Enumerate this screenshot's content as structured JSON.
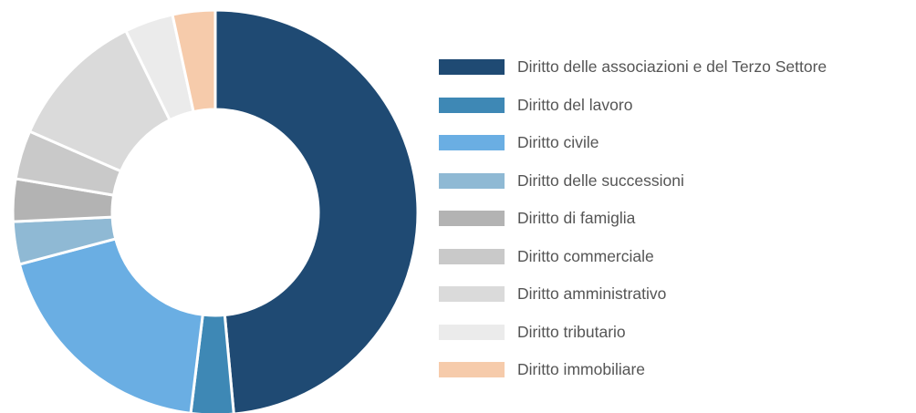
{
  "chart_data": {
    "type": "pie",
    "variant": "donut",
    "legend_position": "right",
    "categories": [
      "Diritto delle associazioni e del Terzo Settore",
      "Diritto del lavoro",
      "Diritto civile",
      "Diritto delle successioni",
      "Diritto di famiglia",
      "Diritto commerciale",
      "Diritto amministrativo",
      "Diritto tributario",
      "Diritto immobiliare"
    ],
    "values": [
      50,
      3.5,
      19.5,
      3.5,
      3.5,
      4,
      11.5,
      4,
      3.5
    ],
    "colors": [
      "#1f4a73",
      "#3e88b5",
      "#6aaee3",
      "#8fb9d4",
      "#b3b3b3",
      "#c9c9c9",
      "#dadada",
      "#ebebeb",
      "#f6cbab"
    ]
  }
}
